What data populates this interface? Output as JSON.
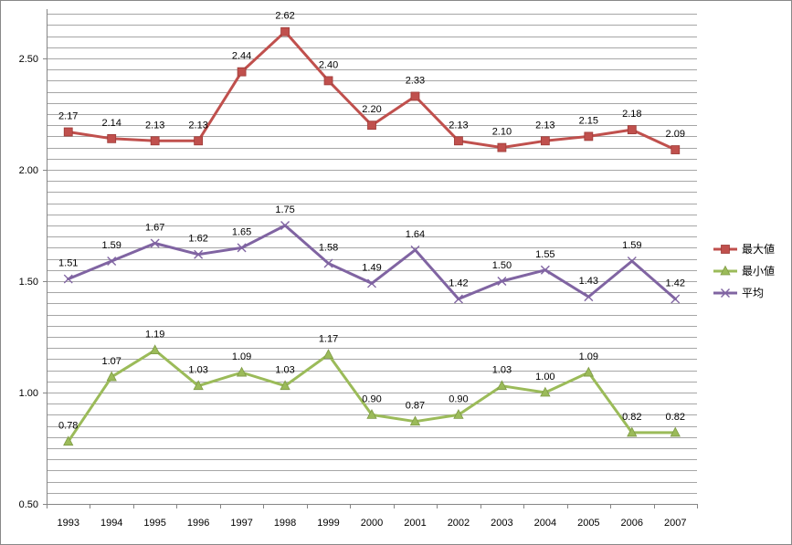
{
  "chart_data": {
    "type": "line",
    "title": "",
    "xlabel": "",
    "ylabel": "",
    "ylim": [
      0.5,
      2.7
    ],
    "y_ticks": [
      "0.50",
      "1.00",
      "1.50",
      "2.00",
      "2.50"
    ],
    "y_tick_values": [
      0.5,
      1.0,
      1.5,
      2.0,
      2.5
    ],
    "grid": true,
    "legend_position": "right",
    "categories": [
      "1993",
      "1994",
      "1995",
      "1996",
      "1997",
      "1998",
      "1999",
      "2000",
      "2001",
      "2002",
      "2003",
      "2004",
      "2005",
      "2006",
      "2007"
    ],
    "series": [
      {
        "name": "最大値",
        "color": "#C0504D",
        "marker": "square",
        "values": [
          2.17,
          2.14,
          2.13,
          2.13,
          2.44,
          2.62,
          2.4,
          2.2,
          2.33,
          2.13,
          2.1,
          2.13,
          2.15,
          2.18,
          2.09
        ],
        "labels": [
          "2.17",
          "2.14",
          "2.13",
          "2.13",
          "2.44",
          "2.62",
          "2.40",
          "2.20",
          "2.33",
          "2.13",
          "2.10",
          "2.13",
          "2.15",
          "2.18",
          "2.09"
        ]
      },
      {
        "name": "最小値",
        "color": "#9BBB59",
        "marker": "triangle",
        "values": [
          0.78,
          1.07,
          1.19,
          1.03,
          1.09,
          1.03,
          1.17,
          0.9,
          0.87,
          0.9,
          1.03,
          1.0,
          1.09,
          0.82,
          0.82
        ],
        "labels": [
          "0.78",
          "1.07",
          "1.19",
          "1.03",
          "1.09",
          "1.03",
          "1.17",
          "0.90",
          "0.87",
          "0.90",
          "1.03",
          "1.00",
          "1.09",
          "0.82",
          "0.82"
        ]
      },
      {
        "name": "平均",
        "color": "#8064A2",
        "marker": "x",
        "values": [
          1.51,
          1.59,
          1.67,
          1.62,
          1.65,
          1.75,
          1.58,
          1.49,
          1.64,
          1.42,
          1.5,
          1.55,
          1.43,
          1.59,
          1.42
        ],
        "labels": [
          "1.51",
          "1.59",
          "1.67",
          "1.62",
          "1.65",
          "1.75",
          "1.58",
          "1.49",
          "1.64",
          "1.42",
          "1.50",
          "1.55",
          "1.43",
          "1.59",
          "1.42"
        ]
      }
    ]
  }
}
